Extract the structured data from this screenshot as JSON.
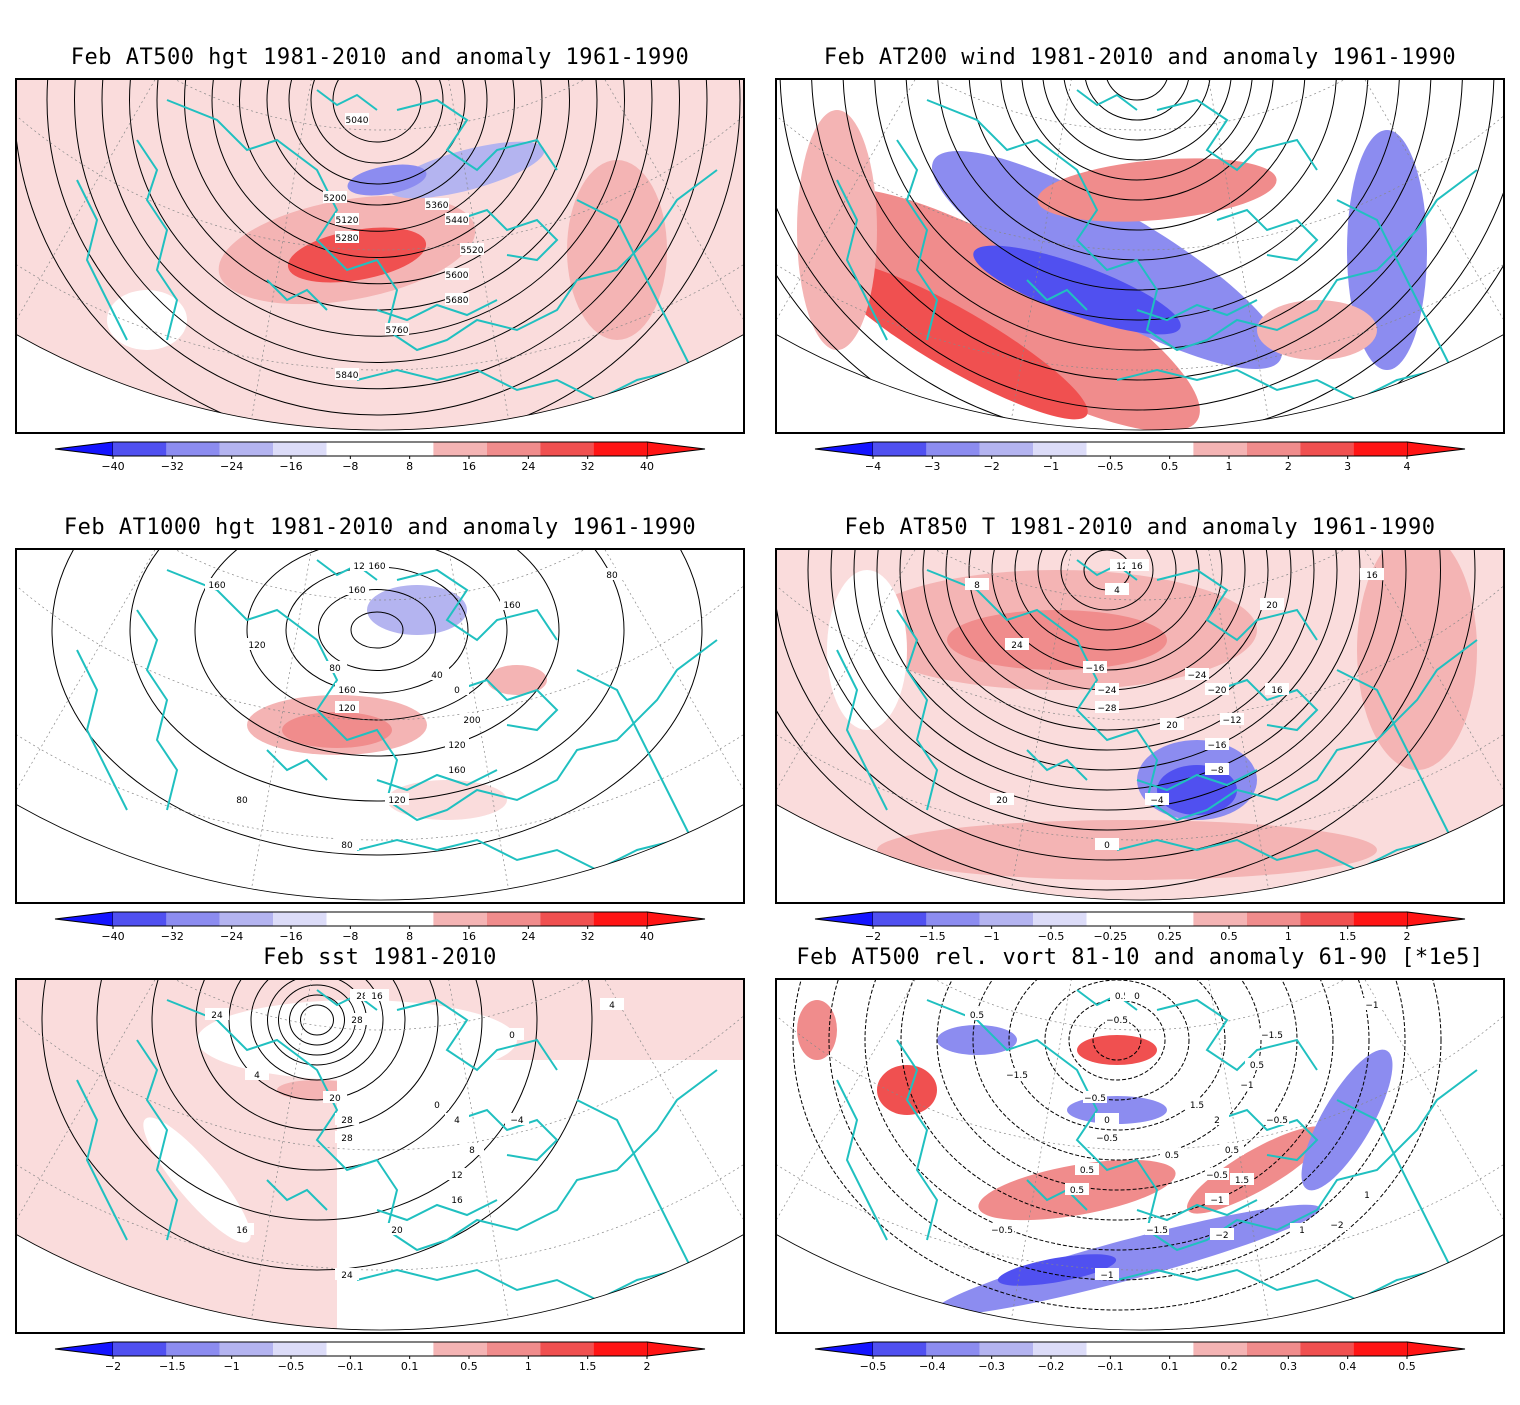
{
  "panels": [
    {
      "id": "p1",
      "title": "Feb AT500 hgt 1981-2010 and anomaly 1961-1990",
      "colorbar": [
        "-40",
        "-32",
        "-24",
        "-16",
        "-8",
        "8",
        "16",
        "24",
        "32",
        "40"
      ],
      "contour_labels": [
        "5120",
        "5200",
        "5280",
        "5360",
        "5440",
        "5520",
        "5600",
        "5680",
        "5760",
        "5840",
        "5040"
      ]
    },
    {
      "id": "p2",
      "title": "Feb AT200 wind 1981-2010 and anomaly 1961-1990",
      "colorbar": [
        "-4",
        "-3",
        "-2",
        "-1",
        "-0.5",
        "0.5",
        "1",
        "2",
        "3",
        "4"
      ],
      "contour_labels": []
    },
    {
      "id": "p3",
      "title": "Feb AT1000 hgt 1981-2010 and anomaly 1961-1990",
      "colorbar": [
        "-40",
        "-32",
        "-24",
        "-16",
        "-8",
        "8",
        "16",
        "24",
        "32",
        "40"
      ],
      "contour_labels": [
        "160",
        "80",
        "120",
        "40",
        "0",
        "200",
        "120",
        "160",
        "120",
        "80",
        "160",
        "160",
        "120",
        "160",
        "80",
        "120",
        "160",
        "80"
      ]
    },
    {
      "id": "p4",
      "title": "Feb AT850 T 1981-2010 and anomaly 1961-1990",
      "colorbar": [
        "-2",
        "-1.5",
        "-1",
        "-0.5",
        "-0.25",
        "0.25",
        "0.5",
        "1",
        "1.5",
        "2"
      ],
      "contour_labels": [
        "-24",
        "-16",
        "-28",
        "-24",
        "-20",
        "-12",
        "-16",
        "-8",
        "-4",
        "0",
        "4",
        "8",
        "12",
        "16",
        "20",
        "24",
        "20",
        "16",
        "16",
        "20"
      ]
    },
    {
      "id": "p5",
      "title": "Feb sst 1981-2010",
      "colorbar": [
        "-2",
        "-1.5",
        "-1",
        "-0.5",
        "-0.1",
        "0.1",
        "0.5",
        "1",
        "1.5",
        "2"
      ],
      "contour_labels": [
        "28",
        "20",
        "28",
        "0",
        "4",
        "8",
        "12",
        "16",
        "20",
        "24",
        "28",
        "24",
        "28",
        "16",
        "16",
        "4",
        "0",
        "4",
        "-4"
      ]
    },
    {
      "id": "p6",
      "title": "Feb AT500 rel. vort 81-10 and anomaly 61-90 [*1e5]",
      "colorbar": [
        "-0.5",
        "-0.4",
        "-0.3",
        "-0.2",
        "-0.1",
        "0.1",
        "0.2",
        "0.3",
        "0.4",
        "0.5"
      ],
      "contour_labels": [
        "0",
        "-0.5",
        "-0.5",
        "1.5",
        "2",
        "0.5",
        "-0.5",
        "-1",
        "-1.5",
        "-1",
        "-0.5",
        "0.5",
        "0.5",
        "0",
        "-0.5",
        "-1.5",
        "-1.5",
        "-1",
        "-0.5",
        "0.5",
        "1.5",
        "1",
        "-2",
        "-2",
        "1",
        "0.5",
        "0.5",
        "0.5",
        "-1"
      ]
    }
  ],
  "colors": {
    "coast": "#20c0c0",
    "contour": "#000000",
    "blue_scale": [
      "#1414ff",
      "#5050f0",
      "#8c8cf0",
      "#b4b4f0",
      "#dcdcf8"
    ],
    "red_scale": [
      "#fadcdc",
      "#f4b4b4",
      "#f08c8c",
      "#f05050",
      "#ff1414"
    ]
  }
}
